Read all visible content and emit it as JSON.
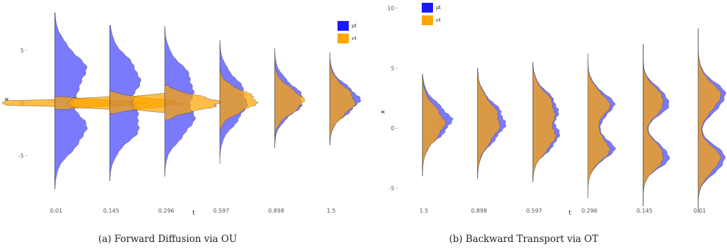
{
  "colors": {
    "mu": "#1a1aff",
    "nu": "#ffa500"
  },
  "chart_data": [
    {
      "type": "area",
      "subtype": "ridgeline-density",
      "caption": "(a) Forward Diffusion via OU",
      "xlabel": "t",
      "ylabel": "x",
      "categories": [
        "0.01",
        "0.145",
        "0.296",
        "0.597",
        "0.898",
        "1.5"
      ],
      "ylim": [
        -8.3,
        9
      ],
      "yticks": [
        -5,
        0,
        5
      ],
      "legend": {
        "position": "top-right",
        "entries": [
          "μt",
          "νt"
        ]
      },
      "grid": false,
      "series": [
        {
          "name": "μt",
          "densities": [
            {
              "t": "0.01",
              "max_width": 0.85,
              "support": [
                -8.2,
                8.6
              ],
              "modes": [
                {
                  "m": -2.6,
                  "s": 1.8,
                  "w": 1
                },
                {
                  "m": 3.0,
                  "s": 1.9,
                  "w": 1
                }
              ]
            },
            {
              "t": "0.145",
              "max_width": 0.82,
              "support": [
                -7.4,
                7.4
              ],
              "modes": [
                {
                  "m": -2.1,
                  "s": 1.7,
                  "w": 1
                },
                {
                  "m": 2.5,
                  "s": 1.8,
                  "w": 1
                }
              ]
            },
            {
              "t": "0.296",
              "max_width": 0.78,
              "support": [
                -7.0,
                7.3
              ],
              "modes": [
                {
                  "m": -1.8,
                  "s": 1.6,
                  "w": 1
                },
                {
                  "m": 2.0,
                  "s": 1.7,
                  "w": 1
                }
              ]
            },
            {
              "t": "0.597",
              "max_width": 0.72,
              "support": [
                -5.8,
                6.0
              ],
              "modes": [
                {
                  "m": -1.0,
                  "s": 1.4,
                  "w": 1
                },
                {
                  "m": 1.3,
                  "s": 1.5,
                  "w": 1.1
                }
              ]
            },
            {
              "t": "0.898",
              "max_width": 0.76,
              "support": [
                -4.3,
                5.2
              ],
              "modes": [
                {
                  "m": -0.3,
                  "s": 1.2,
                  "w": 1
                },
                {
                  "m": 1.0,
                  "s": 1.3,
                  "w": 1
                }
              ]
            },
            {
              "t": "1.5",
              "max_width": 0.8,
              "support": [
                -4.0,
                4.8
              ],
              "modes": [
                {
                  "m": 0.3,
                  "s": 1.3,
                  "w": 1
                }
              ]
            }
          ]
        },
        {
          "name": "νt",
          "densities": [
            {
              "t": "0.01",
              "max_width": 2.4,
              "support": [
                -0.6,
                0.6
              ],
              "modes": [
                {
                  "m": 0.0,
                  "s": 0.3,
                  "w": 1
                }
              ]
            },
            {
              "t": "0.145",
              "max_width": 1.9,
              "support": [
                -1.0,
                1.1
              ],
              "modes": [
                {
                  "m": 0.0,
                  "s": 0.45,
                  "w": 1
                }
              ]
            },
            {
              "t": "0.296",
              "max_width": 1.5,
              "support": [
                -1.6,
                1.7
              ],
              "modes": [
                {
                  "m": 0.0,
                  "s": 0.7,
                  "w": 1
                }
              ]
            },
            {
              "t": "0.597",
              "max_width": 1.0,
              "support": [
                -2.8,
                3.2
              ],
              "modes": [
                {
                  "m": 0.2,
                  "s": 1.0,
                  "w": 1
                }
              ]
            },
            {
              "t": "0.898",
              "max_width": 0.78,
              "support": [
                -3.7,
                3.8
              ],
              "modes": [
                {
                  "m": 0.2,
                  "s": 1.15,
                  "w": 1
                }
              ]
            },
            {
              "t": "1.5",
              "max_width": 0.68,
              "support": [
                -4.0,
                4.2
              ],
              "modes": [
                {
                  "m": 0.2,
                  "s": 1.3,
                  "w": 1
                }
              ]
            }
          ]
        }
      ]
    },
    {
      "type": "area",
      "subtype": "ridgeline-density",
      "caption": "(b) Backward Transport via OT",
      "xlabel": "t",
      "ylabel": "x",
      "categories": [
        "1.5",
        "0.898",
        "0.597",
        "0.296",
        "0.145",
        "0.01"
      ],
      "ylim": [
        -7.5,
        10.2
      ],
      "yticks": [
        -5,
        0,
        5,
        10
      ],
      "legend": {
        "position": "top-left",
        "entries": [
          "μt",
          "νt"
        ]
      },
      "grid": false,
      "series": [
        {
          "name": "μt",
          "densities": [
            {
              "t": "1.5",
              "max_width": 0.78,
              "support": [
                -4.0,
                4.5
              ],
              "modes": [
                {
                  "m": 0.6,
                  "s": 1.3,
                  "w": 1
                }
              ]
            },
            {
              "t": "0.898",
              "max_width": 0.74,
              "support": [
                -4.2,
                5.0
              ],
              "modes": [
                {
                  "m": -0.3,
                  "s": 1.2,
                  "w": 1
                },
                {
                  "m": 1.3,
                  "s": 1.2,
                  "w": 1
                }
              ]
            },
            {
              "t": "0.597",
              "max_width": 0.7,
              "support": [
                -4.5,
                5.5
              ],
              "modes": [
                {
                  "m": -0.9,
                  "s": 1.1,
                  "w": 1
                },
                {
                  "m": 1.8,
                  "s": 1.2,
                  "w": 1
                }
              ]
            },
            {
              "t": "0.296",
              "max_width": 0.7,
              "support": [
                -5.8,
                6.2
              ],
              "modes": [
                {
                  "m": -1.7,
                  "s": 1.0,
                  "w": 1
                },
                {
                  "m": 1.9,
                  "s": 1.1,
                  "w": 1
                }
              ]
            },
            {
              "t": "0.145",
              "max_width": 0.72,
              "support": [
                -6.5,
                7.0
              ],
              "modes": [
                {
                  "m": -2.3,
                  "s": 1.0,
                  "w": 1
                },
                {
                  "m": 2.2,
                  "s": 1.1,
                  "w": 1
                }
              ]
            },
            {
              "t": "0.01",
              "max_width": 0.75,
              "support": [
                -7.0,
                8.3
              ],
              "modes": [
                {
                  "m": -2.6,
                  "s": 1.1,
                  "w": 1
                },
                {
                  "m": 2.6,
                  "s": 1.2,
                  "w": 1
                }
              ]
            }
          ]
        },
        {
          "name": "νt",
          "densities": [
            {
              "t": "1.5",
              "max_width": 0.6,
              "support": [
                -4.0,
                4.3
              ],
              "modes": [
                {
                  "m": 0.4,
                  "s": 1.3,
                  "w": 1
                }
              ]
            },
            {
              "t": "0.898",
              "max_width": 0.6,
              "support": [
                -4.2,
                5.0
              ],
              "modes": [
                {
                  "m": -0.3,
                  "s": 1.25,
                  "w": 1
                },
                {
                  "m": 1.3,
                  "s": 1.25,
                  "w": 1
                }
              ]
            },
            {
              "t": "0.597",
              "max_width": 0.6,
              "support": [
                -4.5,
                5.5
              ],
              "modes": [
                {
                  "m": -0.9,
                  "s": 1.15,
                  "w": 1
                },
                {
                  "m": 1.8,
                  "s": 1.2,
                  "w": 1
                }
              ]
            },
            {
              "t": "0.296",
              "max_width": 0.58,
              "support": [
                -5.8,
                6.2
              ],
              "modes": [
                {
                  "m": -1.7,
                  "s": 1.05,
                  "w": 1
                },
                {
                  "m": 1.9,
                  "s": 1.1,
                  "w": 1
                }
              ]
            },
            {
              "t": "0.145",
              "max_width": 0.58,
              "support": [
                -6.5,
                7.0
              ],
              "modes": [
                {
                  "m": -2.3,
                  "s": 1.05,
                  "w": 1
                },
                {
                  "m": 2.2,
                  "s": 1.1,
                  "w": 1
                }
              ]
            },
            {
              "t": "0.01",
              "max_width": 0.6,
              "support": [
                -7.0,
                8.3
              ],
              "modes": [
                {
                  "m": -2.6,
                  "s": 1.1,
                  "w": 1
                },
                {
                  "m": 2.6,
                  "s": 1.2,
                  "w": 1
                }
              ]
            }
          ]
        }
      ]
    }
  ]
}
